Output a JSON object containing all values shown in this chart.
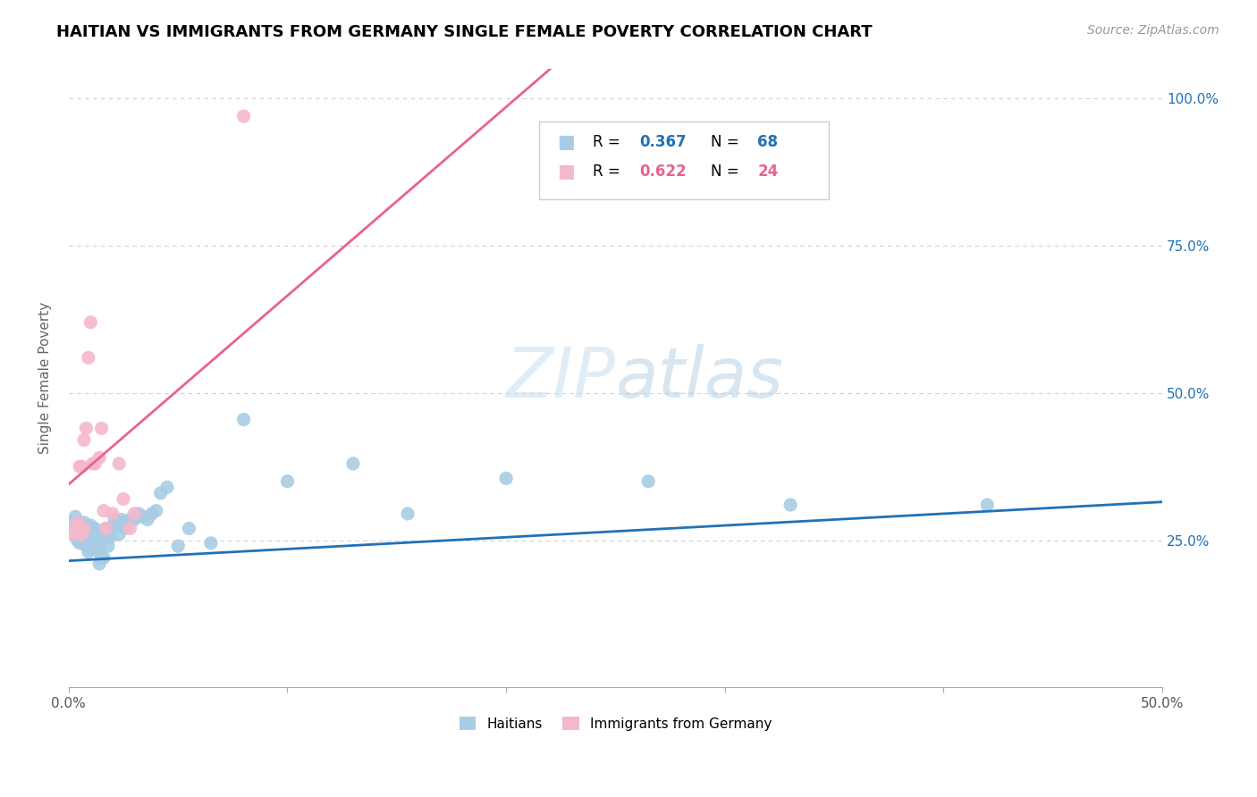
{
  "title": "HAITIAN VS IMMIGRANTS FROM GERMANY SINGLE FEMALE POVERTY CORRELATION CHART",
  "source": "Source: ZipAtlas.com",
  "ylabel": "Single Female Poverty",
  "legend_label1": "Haitians",
  "legend_label2": "Immigrants from Germany",
  "R1": 0.367,
  "N1": 68,
  "R2": 0.622,
  "N2": 24,
  "blue_color": "#a8cce4",
  "pink_color": "#f4b8cb",
  "blue_line_color": "#2171b5",
  "pink_line_color": "#e8638a",
  "ytick_labels": [
    "25.0%",
    "50.0%",
    "75.0%",
    "100.0%"
  ],
  "ytick_values": [
    0.25,
    0.5,
    0.75,
    1.0
  ],
  "xlim": [
    0.0,
    0.5
  ],
  "ylim": [
    0.0,
    1.05
  ],
  "blue_line_x0": 0.0,
  "blue_line_y0": 0.215,
  "blue_line_x1": 0.5,
  "blue_line_y1": 0.315,
  "pink_line_x0": 0.0,
  "pink_line_y0": 0.345,
  "pink_line_x1": 0.22,
  "pink_line_y1": 1.05,
  "blue_points_x": [
    0.002,
    0.003,
    0.003,
    0.004,
    0.004,
    0.004,
    0.005,
    0.005,
    0.005,
    0.006,
    0.006,
    0.006,
    0.007,
    0.007,
    0.007,
    0.008,
    0.008,
    0.008,
    0.009,
    0.009,
    0.009,
    0.01,
    0.01,
    0.01,
    0.011,
    0.011,
    0.012,
    0.012,
    0.013,
    0.013,
    0.014,
    0.014,
    0.015,
    0.015,
    0.016,
    0.016,
    0.017,
    0.018,
    0.018,
    0.019,
    0.02,
    0.021,
    0.022,
    0.023,
    0.024,
    0.025,
    0.026,
    0.027,
    0.028,
    0.03,
    0.032,
    0.034,
    0.036,
    0.038,
    0.04,
    0.042,
    0.045,
    0.05,
    0.055,
    0.065,
    0.08,
    0.1,
    0.13,
    0.155,
    0.2,
    0.265,
    0.33,
    0.42
  ],
  "blue_points_y": [
    0.28,
    0.29,
    0.27,
    0.28,
    0.265,
    0.25,
    0.28,
    0.26,
    0.245,
    0.275,
    0.26,
    0.255,
    0.28,
    0.265,
    0.25,
    0.27,
    0.255,
    0.24,
    0.265,
    0.255,
    0.23,
    0.275,
    0.255,
    0.235,
    0.265,
    0.245,
    0.27,
    0.245,
    0.265,
    0.24,
    0.23,
    0.21,
    0.25,
    0.22,
    0.255,
    0.22,
    0.27,
    0.265,
    0.24,
    0.255,
    0.27,
    0.285,
    0.275,
    0.26,
    0.285,
    0.28,
    0.27,
    0.28,
    0.285,
    0.285,
    0.295,
    0.29,
    0.285,
    0.295,
    0.3,
    0.33,
    0.34,
    0.24,
    0.27,
    0.245,
    0.455,
    0.35,
    0.38,
    0.295,
    0.355,
    0.35,
    0.31,
    0.31
  ],
  "pink_points_x": [
    0.002,
    0.003,
    0.004,
    0.005,
    0.005,
    0.006,
    0.006,
    0.007,
    0.007,
    0.008,
    0.009,
    0.01,
    0.011,
    0.012,
    0.014,
    0.015,
    0.016,
    0.017,
    0.02,
    0.023,
    0.025,
    0.028,
    0.03,
    0.08
  ],
  "pink_points_y": [
    0.26,
    0.27,
    0.28,
    0.27,
    0.375,
    0.26,
    0.375,
    0.42,
    0.27,
    0.44,
    0.56,
    0.62,
    0.38,
    0.38,
    0.39,
    0.44,
    0.3,
    0.27,
    0.295,
    0.38,
    0.32,
    0.27,
    0.295,
    0.97
  ]
}
